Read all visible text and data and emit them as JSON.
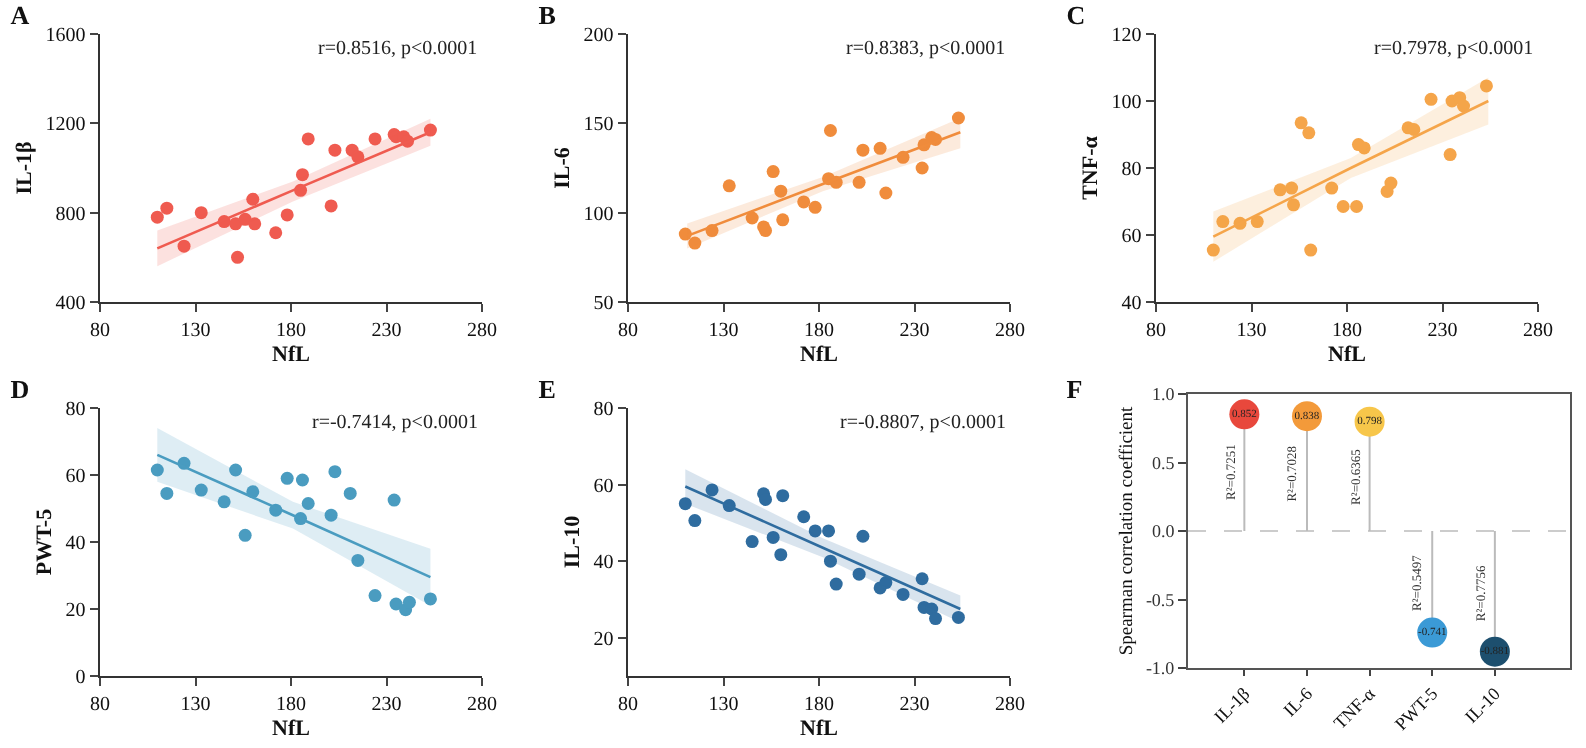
{
  "chart_data": [
    {
      "type": "scatter",
      "title": "A",
      "xlabel": "NfL",
      "ylabel": "IL-1β",
      "xlim": [
        80,
        280
      ],
      "xticks": [
        80,
        130,
        180,
        230,
        280
      ],
      "ylim": [
        400,
        1600
      ],
      "yticks": [
        400,
        800,
        1200,
        1600
      ],
      "grid": false,
      "annotations": [
        "r=0.8516, p<0.0001"
      ],
      "x": [
        110,
        115,
        124,
        133,
        145,
        151,
        152,
        156,
        160,
        161,
        172,
        178,
        185,
        186,
        189,
        201,
        203,
        212,
        215,
        224,
        234,
        235,
        239,
        241,
        253
      ],
      "series": [
        {
          "type": "scatter",
          "marker": "circle",
          "color": "#ef5b50",
          "values": [
            780,
            820,
            650,
            800,
            760,
            750,
            600,
            770,
            860,
            750,
            710,
            790,
            900,
            970,
            1130,
            830,
            1080,
            1080,
            1050,
            1130,
            1150,
            1140,
            1140,
            1120,
            1170
          ]
        },
        {
          "type": "line",
          "marker": "none",
          "color": "#ef5b50",
          "x": [
            110,
            181,
            253
          ],
          "values": [
            640,
            900,
            1160
          ],
          "lower": [
            560,
            850,
            1100
          ],
          "upper": [
            720,
            940,
            1220
          ]
        }
      ]
    },
    {
      "type": "scatter",
      "title": "B",
      "xlabel": "NfL",
      "ylabel": "IL-6",
      "xlim": [
        80,
        280
      ],
      "xticks": [
        80,
        130,
        180,
        230,
        280
      ],
      "ylim": [
        50,
        200
      ],
      "yticks": [
        50,
        100,
        150,
        200
      ],
      "grid": false,
      "annotations": [
        "r=0.8383, p<0.0001"
      ],
      "x": [
        110,
        115,
        124,
        133,
        145,
        151,
        152,
        156,
        160,
        161,
        172,
        178,
        185,
        186,
        189,
        201,
        203,
        212,
        215,
        224,
        234,
        235,
        239,
        241,
        253
      ],
      "series": [
        {
          "type": "scatter",
          "marker": "circle",
          "color": "#f08c3c",
          "values": [
            88,
            83,
            90,
            115,
            97,
            92,
            90,
            123,
            112,
            96,
            106,
            103,
            119,
            146,
            117,
            117,
            135,
            136,
            111,
            131,
            125,
            138,
            142,
            141,
            153
          ]
        },
        {
          "type": "line",
          "marker": "none",
          "color": "#f08c3c",
          "x": [
            111,
            182,
            254
          ],
          "values": [
            87,
            116,
            145
          ],
          "lower": [
            80,
            112,
            136
          ],
          "upper": [
            94,
            120,
            153
          ]
        }
      ]
    },
    {
      "type": "scatter",
      "title": "C",
      "xlabel": "NfL",
      "ylabel": "TNF-α",
      "xlim": [
        80,
        280
      ],
      "xticks": [
        80,
        130,
        180,
        230,
        280
      ],
      "ylim": [
        40,
        120
      ],
      "yticks": [
        40,
        60,
        80,
        100,
        120
      ],
      "grid": false,
      "annotations": [
        "r=0.7978, p<0.0001"
      ],
      "x": [
        110,
        115,
        124,
        133,
        145,
        151,
        152,
        156,
        160,
        161,
        172,
        178,
        185,
        186,
        189,
        201,
        203,
        212,
        215,
        224,
        234,
        235,
        239,
        241,
        253
      ],
      "series": [
        {
          "type": "scatter",
          "marker": "circle",
          "color": "#f5a54a",
          "values": [
            55.5,
            64,
            63.5,
            64,
            73.5,
            74,
            69,
            93.5,
            90.5,
            55.5,
            74,
            68.5,
            68.5,
            87,
            86,
            73,
            75.5,
            92,
            91.5,
            100.5,
            84,
            100,
            101,
            98.5,
            104.5
          ]
        },
        {
          "type": "line",
          "marker": "none",
          "color": "#f5a54a",
          "x": [
            110,
            182,
            254
          ],
          "values": [
            59.5,
            80,
            100
          ],
          "lower": [
            52,
            77,
            93
          ],
          "upper": [
            67,
            83,
            107
          ]
        }
      ]
    },
    {
      "type": "scatter",
      "title": "D",
      "xlabel": "NfL",
      "ylabel": "PWT-5",
      "xlim": [
        80,
        280
      ],
      "xticks": [
        80,
        130,
        180,
        230,
        280
      ],
      "ylim": [
        0,
        80
      ],
      "yticks": [
        0,
        20,
        40,
        60,
        80
      ],
      "grid": false,
      "annotations": [
        "r=-0.7414, p<0.0001"
      ],
      "series": [
        {
          "type": "scatter",
          "marker": "circle",
          "color": "#4a9cc0",
          "x": [
            110,
            115,
            124,
            133,
            145,
            151,
            156,
            160,
            172,
            178,
            185,
            186,
            189,
            201,
            203,
            211,
            215,
            224,
            234,
            235,
            240,
            242,
            253
          ],
          "values": [
            61.5,
            54.5,
            63.5,
            55.5,
            52,
            61.5,
            42,
            55,
            49.5,
            59,
            47,
            58.5,
            51.5,
            48,
            61,
            54.5,
            34.5,
            24,
            52.5,
            21.5,
            19.8,
            22,
            23
          ]
        },
        {
          "type": "line",
          "marker": "none",
          "color": "#4a9cc0",
          "x": [
            110,
            181,
            253
          ],
          "values": [
            66,
            48,
            29.5
          ],
          "lower": [
            58,
            44,
            21
          ],
          "upper": [
            74,
            52,
            38
          ]
        }
      ]
    },
    {
      "type": "scatter",
      "title": "E",
      "xlabel": "NfL",
      "ylabel": "IL-10",
      "xlim": [
        80,
        280
      ],
      "xticks": [
        80,
        130,
        180,
        230,
        280
      ],
      "ylim": [
        10,
        80
      ],
      "yticks": [
        20,
        40,
        60,
        80
      ],
      "grid": false,
      "annotations": [
        "r=-0.8807, p<0.0001"
      ],
      "x": [
        110,
        115,
        124,
        133,
        145,
        151,
        152,
        156,
        160,
        161,
        172,
        178,
        185,
        186,
        189,
        201,
        203,
        212,
        215,
        224,
        234,
        235,
        239,
        241,
        253
      ],
      "series": [
        {
          "type": "scatter",
          "marker": "circle",
          "color": "#2f6c9f",
          "values": [
            55,
            50.6,
            58.6,
            54.5,
            45.1,
            57.6,
            56.1,
            46.2,
            41.7,
            57.1,
            51.6,
            47.9,
            47.9,
            40,
            34,
            36.6,
            46.5,
            33,
            34.4,
            31.3,
            35.4,
            27.9,
            27.5,
            25,
            25.3
          ]
        },
        {
          "type": "line",
          "marker": "none",
          "color": "#2f6c9f",
          "x": [
            110,
            182,
            254
          ],
          "values": [
            59.5,
            43.5,
            27.5
          ],
          "lower": [
            55,
            41,
            24
          ],
          "upper": [
            64,
            46,
            31
          ]
        }
      ]
    },
    {
      "type": "lollipop",
      "title": "F",
      "ylabel": "Spearman correlation coefficient",
      "categories": [
        "IL-1β",
        "IL-6",
        "TNF-α",
        "PWT-5",
        "IL-10"
      ],
      "values": [
        0.852,
        0.838,
        0.798,
        -0.741,
        -0.881
      ],
      "colors": [
        "#e8483c",
        "#f39a3a",
        "#f7c64a",
        "#3b9ad6",
        "#1d4f6e"
      ],
      "value_labels": [
        "0.852",
        "0.838",
        "0.798",
        "-0.741",
        "-0.881"
      ],
      "ylim": [
        -1,
        1
      ],
      "yticks": [
        {
          "value": -1,
          "label": "-1.0"
        },
        -0.5,
        {
          "value": 0,
          "label": "0.0"
        },
        0.5,
        {
          "value": 1,
          "label": "1.0"
        }
      ],
      "grid": false,
      "ref_lines": [
        {
          "axis": "y",
          "value": 0,
          "line_style": "dashed",
          "color": "#cccccc"
        }
      ],
      "annotations": [
        "R²=0.7251",
        "R²=0.7028",
        "R²=0.6365",
        "R²=0.5497",
        "R²=0.7756"
      ]
    }
  ]
}
